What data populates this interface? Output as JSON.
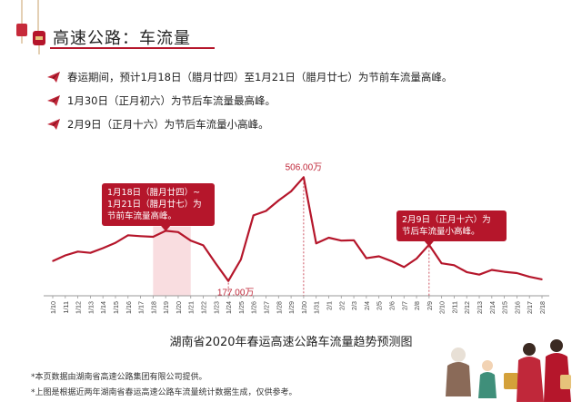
{
  "header": {
    "title": "高速公路：车流量"
  },
  "bullets": [
    {
      "text": "春运期间，预计1月18日（腊月廿四）至1月21日（腊月廿七）为节前车流量高峰。"
    },
    {
      "text": "1月30日（正月初六）为节后车流量最高峰。"
    },
    {
      "text": "2月9日（正月十六）为节后车流量小高峰。"
    }
  ],
  "chart_data": {
    "type": "line",
    "title": "湖南省2020年春运高速公路车流量趋势预测图",
    "x": [
      "1/10",
      "1/11",
      "1/12",
      "1/13",
      "1/14",
      "1/15",
      "1/16",
      "1/17",
      "1/18",
      "1/19",
      "1/20",
      "1/21",
      "1/22",
      "1/23",
      "1/24",
      "1/25",
      "1/26",
      "1/27",
      "1/28",
      "1/29",
      "1/30",
      "1/31",
      "2/1",
      "2/2",
      "2/3",
      "2/4",
      "2/5",
      "2/6",
      "2/7",
      "2/8",
      "2/9",
      "2/10",
      "2/11",
      "2/12",
      "2/13",
      "2/14",
      "2/15",
      "2/16",
      "2/17",
      "2/18"
    ],
    "values": [
      240,
      258,
      270,
      266,
      281,
      298,
      322,
      319,
      317,
      336,
      332,
      305,
      290,
      232,
      177,
      245,
      385,
      399,
      432,
      461,
      506,
      296,
      314,
      305,
      306,
      249,
      255,
      240,
      221,
      248,
      292,
      233,
      227,
      205,
      197,
      212,
      206,
      202,
      190,
      182
    ],
    "ylim": [
      130,
      550
    ],
    "color": "#b5162b",
    "shaded_range": [
      "1/18",
      "1/21"
    ],
    "point_labels": [
      {
        "x": "1/30",
        "text": "506.00万"
      },
      {
        "x": "1/24",
        "text": "177.00万"
      }
    ],
    "callouts": [
      {
        "x": "1/18",
        "text": "1月18日（腊月廿四）~1月21日（腊月廿七）为节前车流量高峰。"
      },
      {
        "x": "2/9",
        "text": "2月9日（正月十六）为节后车流量小高峰。"
      }
    ]
  },
  "notes": [
    "*本页数据由湖南省高速公路集团有限公司提供。",
    "*上图是根据近两年湖南省春运高速公路车流量统计数据生成，仅供参考。"
  ]
}
